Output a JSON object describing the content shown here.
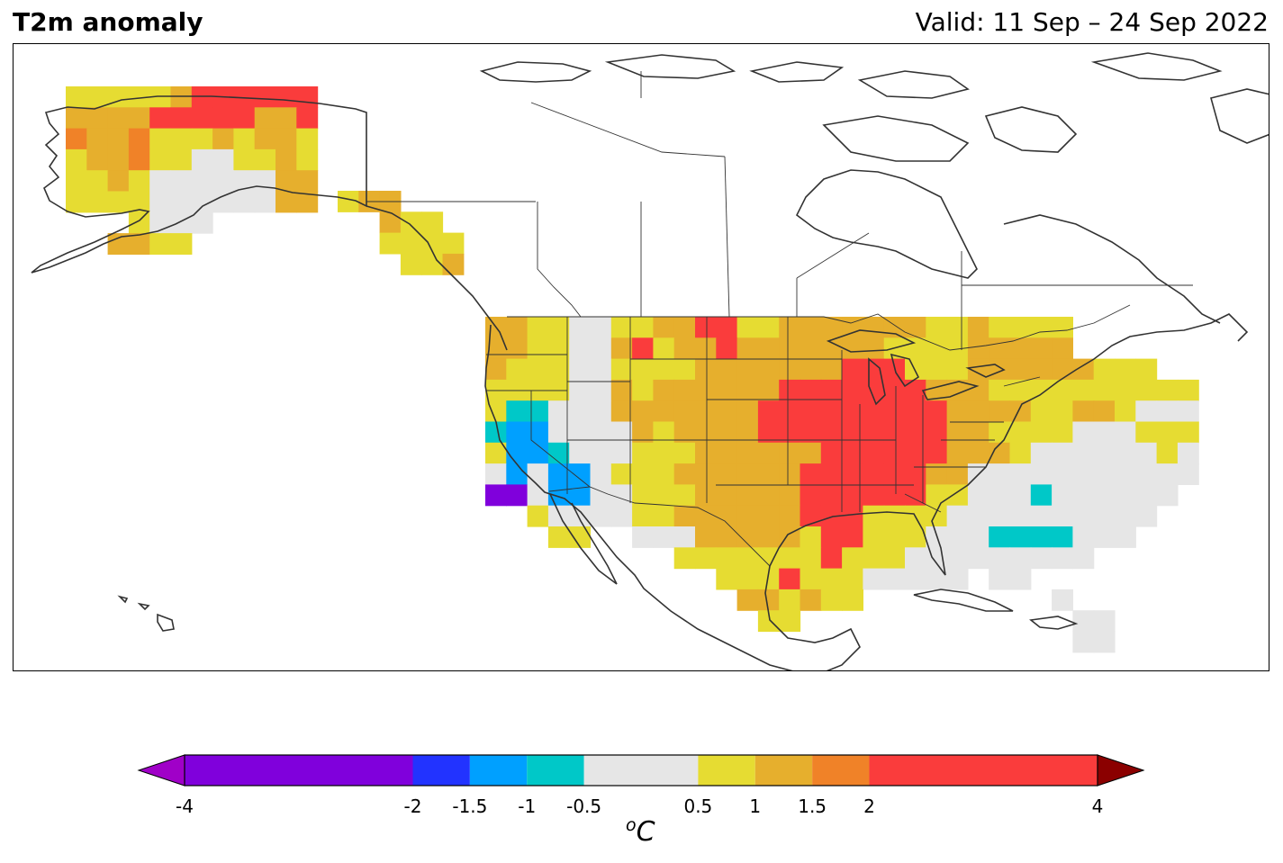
{
  "title": "T2m anomaly",
  "valid_label": "Valid: 11 Sep – 24 Sep 2022",
  "colorbar": {
    "unit_sup": "o",
    "unit_main": "C",
    "ticks": [
      "-4",
      "-2",
      "-1.5",
      "-1",
      "-0.5",
      "0.5",
      "1",
      "1.5",
      "2",
      "4"
    ],
    "bins": [
      {
        "from": "-4",
        "to": "-2",
        "color": "#8000dc"
      },
      {
        "from": "-2",
        "to": "-1.5",
        "color": "#2233ff"
      },
      {
        "from": "-1.5",
        "to": "-1",
        "color": "#00a0ff"
      },
      {
        "from": "-1",
        "to": "-0.5",
        "color": "#00c8c8"
      },
      {
        "from": "-0.5",
        "to": "0.5",
        "color": "#e6e6e6"
      },
      {
        "from": "0.5",
        "to": "1",
        "color": "#e6dc32"
      },
      {
        "from": "1",
        "to": "1.5",
        "color": "#e6af2d"
      },
      {
        "from": "1.5",
        "to": "2",
        "color": "#f08228"
      },
      {
        "from": "2",
        "to": "4",
        "color": "#fa3c3c"
      }
    ],
    "under_color": "#a000c8",
    "over_color": "#8b0000"
  },
  "map": {
    "region": "North America",
    "regions_colored": [
      "Alaska",
      "Contiguous United States",
      "Southeast Alaska coast"
    ],
    "features": [
      "coastlines",
      "country borders",
      "US state borders",
      "Canadian province borders"
    ]
  }
}
